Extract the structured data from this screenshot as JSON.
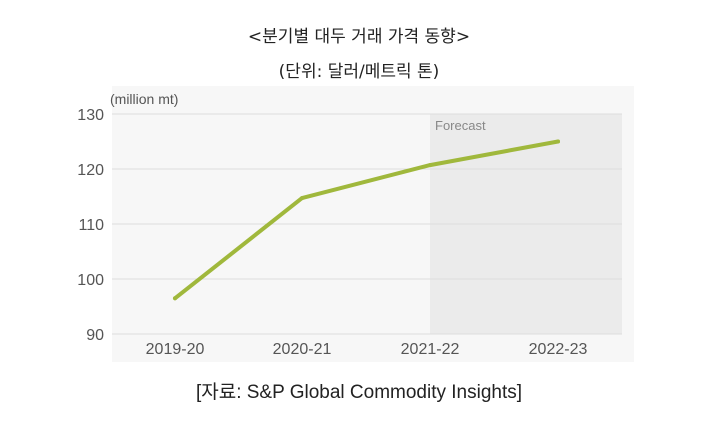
{
  "title": "<분기별 대두 거래 가격 동향>",
  "subtitle": "(단위: 달러/메트릭 톤)",
  "source": "[자료: S&P Global Commodity Insights]",
  "chart_data": {
    "type": "line",
    "categories": [
      "2019-20",
      "2020-21",
      "2021-22",
      "2022-23"
    ],
    "series": [
      {
        "values": [
          96.5,
          114.7,
          120.7,
          125.0
        ],
        "color": "#a0b83c"
      }
    ],
    "ylabel": "(million mt)",
    "ylim": [
      90,
      130
    ],
    "yticks": [
      90,
      100,
      110,
      120,
      130
    ],
    "grid": true,
    "forecast_label": "Forecast",
    "forecast_start_category": "2021-22",
    "colors": {
      "plot_background": "#f7f7f7",
      "forecast_shade": "#ebebeb",
      "gridline": "#dcdcdc",
      "tick_text": "#555555"
    }
  }
}
